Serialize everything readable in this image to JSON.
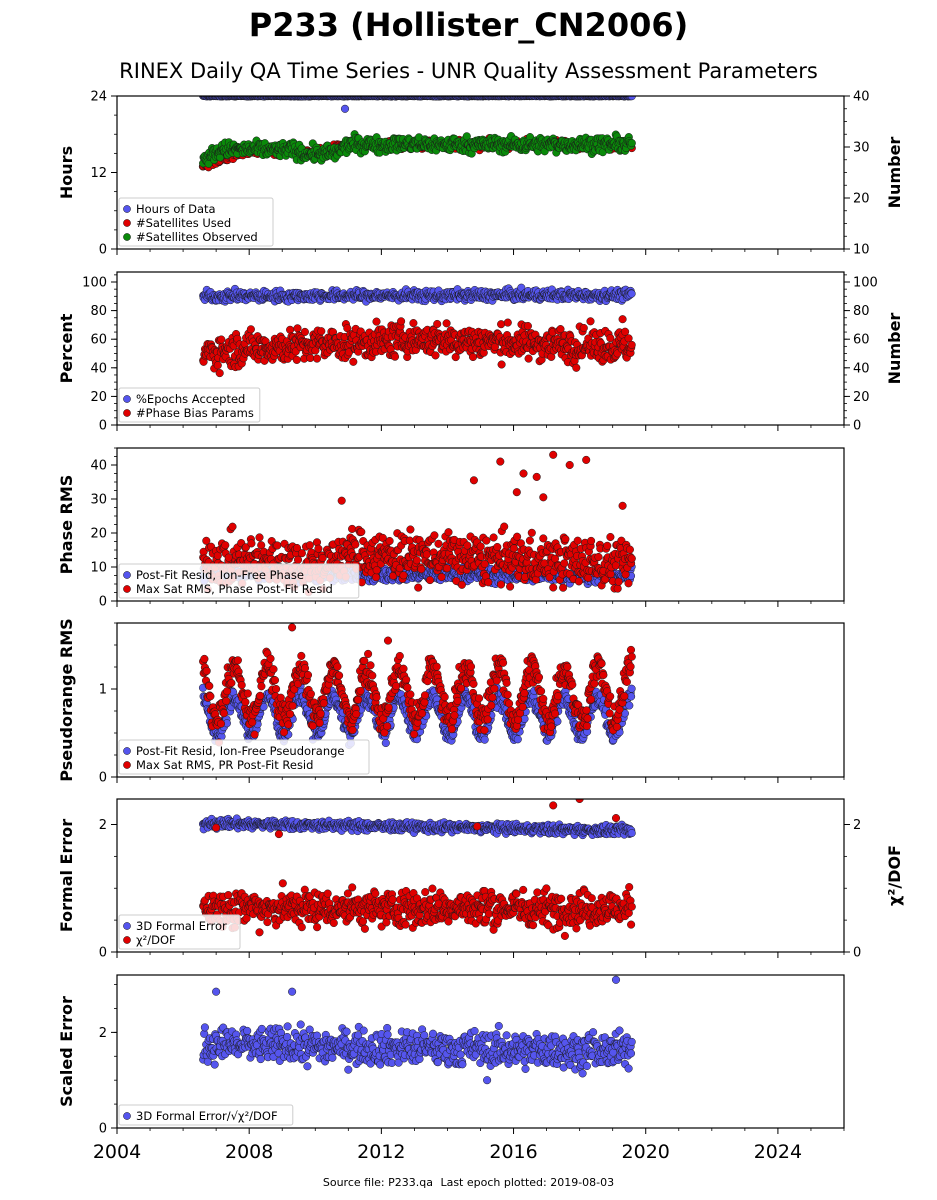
{
  "header": {
    "title": "P233 (Hollister_CN2006)",
    "subtitle": "RINEX Daily QA Time Series - UNR Quality Assessment Parameters"
  },
  "footer": {
    "source_label": "Source file: P233.qa",
    "last_epoch_label": "Last epoch plotted: 2019-08-03"
  },
  "chart_data": [
    {
      "type": "scatter",
      "ylabel": "Hours",
      "y2label": "Number",
      "ylim": [
        0,
        24
      ],
      "yticks": [
        0,
        12,
        24
      ],
      "y2lim": [
        10,
        40
      ],
      "y2ticks": [
        10,
        20,
        30,
        40
      ],
      "xlim": [
        2004,
        2026
      ],
      "data_range": [
        2006.6,
        2019.59
      ],
      "legend_position": "lower-left",
      "series": [
        {
          "name": "Hours of Data",
          "axis": "left",
          "color": "#5555ee",
          "level": 24.0,
          "spread": 0.05,
          "outliers": [
            [
              2010.9,
              22.0
            ]
          ]
        },
        {
          "name": "#Satellites Used",
          "axis": "right",
          "color": "#e00000",
          "trend": [
            [
              2006.6,
              26.5
            ],
            [
              2008,
              29.5
            ],
            [
              2010,
              29
            ],
            [
              2011,
              30.5
            ],
            [
              2019.6,
              30.5
            ]
          ],
          "spread": 0.6,
          "outliers": [
            [
              2009.3,
              30.0
            ]
          ],
          "note": "overlaid by observed series"
        },
        {
          "name": "#Satellites Observed",
          "axis": "right",
          "color": "#0a8a0a",
          "trend": [
            [
              2006.6,
              27.5
            ],
            [
              2007.2,
              29.5
            ],
            [
              2009.4,
              29.5
            ],
            [
              2009.6,
              28.7
            ],
            [
              2010.6,
              28.7
            ],
            [
              2011,
              30.5
            ],
            [
              2019.6,
              30.5
            ]
          ],
          "spread": 1.0
        }
      ]
    },
    {
      "type": "scatter",
      "ylabel": "Percent",
      "y2label": "Number",
      "ylim": [
        0,
        107
      ],
      "yticks": [
        0,
        20,
        40,
        60,
        80,
        100
      ],
      "y2lim": [
        0,
        107
      ],
      "y2ticks": [
        0,
        20,
        40,
        60,
        80,
        100
      ],
      "xlim": [
        2004,
        2026
      ],
      "data_range": [
        2006.6,
        2019.59
      ],
      "legend_position": "lower-left",
      "series": [
        {
          "name": "%Epochs Accepted",
          "axis": "left",
          "color": "#5555ee",
          "trend": [
            [
              2006.6,
              90
            ],
            [
              2019.6,
              91
            ]
          ],
          "spread": 2.5
        },
        {
          "name": "#Phase Bias Params",
          "axis": "right",
          "color": "#e00000",
          "trend": [
            [
              2006.6,
              50
            ],
            [
              2008,
              54
            ],
            [
              2011,
              57
            ],
            [
              2013,
              60
            ],
            [
              2019.6,
              55
            ]
          ],
          "spread": 8,
          "outliers": [
            [
              2017.9,
              40
            ],
            [
              2019.3,
              74
            ]
          ]
        }
      ]
    },
    {
      "type": "scatter",
      "ylabel": "Phase RMS",
      "ylim": [
        0,
        45
      ],
      "yticks": [
        0,
        10,
        20,
        30,
        40
      ],
      "xlim": [
        2004,
        2026
      ],
      "data_range": [
        2006.6,
        2019.59
      ],
      "legend_position": "lower-left",
      "series": [
        {
          "name": "Post-Fit Resid, Ion-Free Phase",
          "axis": "left",
          "color": "#5555ee",
          "trend": [
            [
              2006.6,
              8
            ],
            [
              2019.6,
              7.5
            ]
          ],
          "spread": 1.5
        },
        {
          "name": "Max Sat RMS, Phase Post-Fit Resid",
          "axis": "left",
          "color": "#e00000",
          "trend": [
            [
              2006.6,
              12
            ],
            [
              2010.6,
              11
            ],
            [
              2010.8,
              14
            ],
            [
              2019.6,
              11
            ]
          ],
          "spread": 5,
          "outliers": [
            [
              2010.8,
              29.5
            ],
            [
              2014.8,
              35.5
            ],
            [
              2015.6,
              41
            ],
            [
              2016.3,
              37.5
            ],
            [
              2016.7,
              36.5
            ],
            [
              2017.2,
              43
            ],
            [
              2017.7,
              40
            ],
            [
              2018.2,
              41.5
            ],
            [
              2016.1,
              32
            ],
            [
              2016.9,
              30.5
            ],
            [
              2019.3,
              28
            ]
          ]
        }
      ]
    },
    {
      "type": "scatter",
      "ylabel": "Pseudorange RMS",
      "ylim": [
        0,
        1.75
      ],
      "yticks": [
        0,
        1
      ],
      "xlim": [
        2004,
        2026
      ],
      "data_range": [
        2006.6,
        2019.59
      ],
      "legend_position": "lower-left",
      "series": [
        {
          "name": "Post-Fit Resid, Ion-Free Pseudorange",
          "axis": "left",
          "color": "#5555ee",
          "base": 0.7,
          "amplitude": 0.22,
          "period": 1.0,
          "spread": 0.07
        },
        {
          "name": "Max Sat RMS, PR Post-Fit Resid",
          "axis": "left",
          "color": "#e00000",
          "base": 0.95,
          "amplitude": 0.3,
          "period": 1.0,
          "spread": 0.13,
          "outliers": [
            [
              2009.3,
              1.7
            ],
            [
              2012.2,
              1.55
            ]
          ]
        }
      ]
    },
    {
      "type": "scatter",
      "ylabel": "Formal Error",
      "y2label": "χ²/DOF",
      "ylim": [
        0,
        2.4
      ],
      "yticks": [
        0,
        2
      ],
      "y2lim": [
        0,
        2.4
      ],
      "y2ticks": [
        0,
        2
      ],
      "xlim": [
        2004,
        2026
      ],
      "data_range": [
        2006.6,
        2019.59
      ],
      "legend_position": "lower-left",
      "series": [
        {
          "name": "3D Formal Error",
          "axis": "left",
          "color": "#5555ee",
          "trend": [
            [
              2006.6,
              2.02
            ],
            [
              2019.6,
              1.9
            ]
          ],
          "spread": 0.05
        },
        {
          "name": "χ²/DOF",
          "axis": "right",
          "color": "#e00000",
          "trend": [
            [
              2006.6,
              0.7
            ],
            [
              2019.6,
              0.68
            ]
          ],
          "spread": 0.2,
          "outliers": [
            [
              2007.0,
              1.95
            ],
            [
              2008.9,
              1.85
            ],
            [
              2014.9,
              1.97
            ],
            [
              2017.2,
              2.3
            ],
            [
              2019.1,
              2.1
            ],
            [
              2018.0,
              2.4
            ]
          ]
        }
      ]
    },
    {
      "type": "scatter",
      "ylabel": "Scaled Error",
      "ylim": [
        0,
        3.2
      ],
      "yticks": [
        0,
        2
      ],
      "xlim": [
        2004,
        2026
      ],
      "data_range": [
        2006.6,
        2019.59
      ],
      "legend_position": "lower-left",
      "series": [
        {
          "name": "3D Formal Error/√χ²/DOF",
          "axis": "left",
          "color": "#5555ee",
          "trend": [
            [
              2006.6,
              1.75
            ],
            [
              2019.6,
              1.6
            ]
          ],
          "spread": 0.25,
          "outliers": [
            [
              2007.0,
              2.85
            ],
            [
              2009.3,
              2.85
            ],
            [
              2019.1,
              3.1
            ],
            [
              2015.2,
              1.0
            ]
          ]
        }
      ]
    }
  ],
  "x_axis": {
    "ticks": [
      "2004",
      "2008",
      "2012",
      "2016",
      "2020",
      "2024"
    ],
    "tick_values": [
      2004,
      2008,
      2012,
      2016,
      2020,
      2024
    ]
  }
}
